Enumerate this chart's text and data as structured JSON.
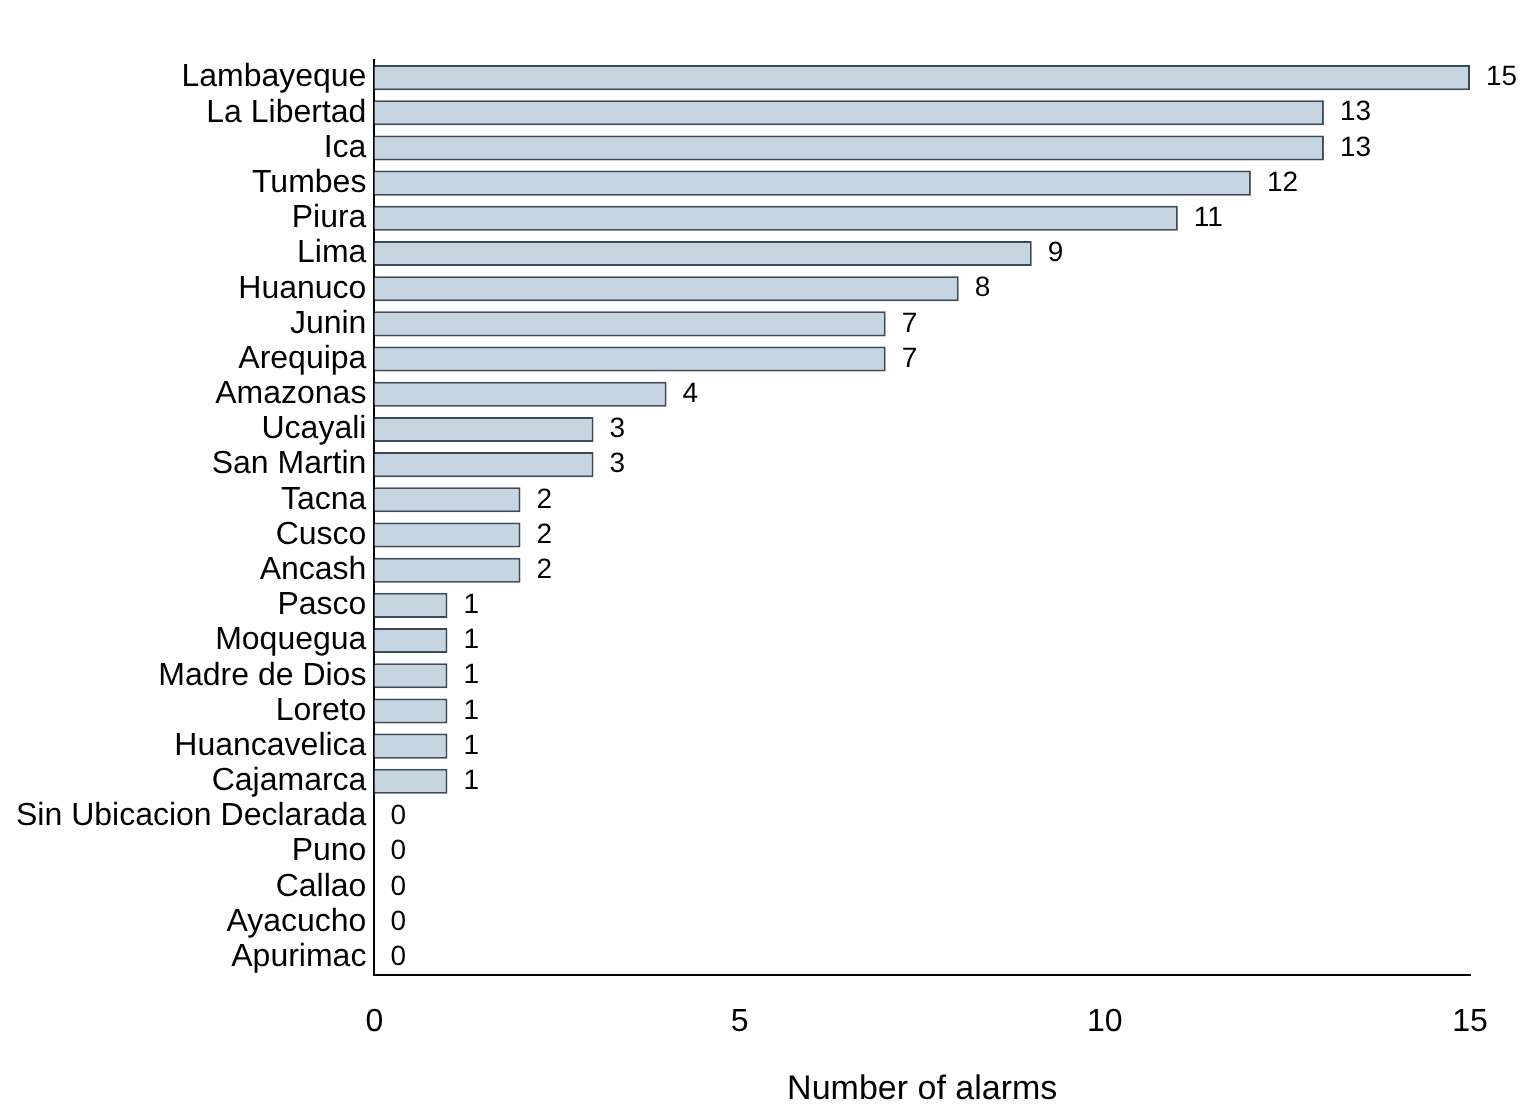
{
  "chart_data": {
    "type": "bar",
    "orientation": "horizontal",
    "xlabel": "Number of alarms",
    "categories": [
      "Lambayeque",
      "La Libertad",
      "Ica",
      "Tumbes",
      "Piura",
      "Lima",
      "Huanuco",
      "Junin",
      "Arequipa",
      "Amazonas",
      "Ucayali",
      "San Martin",
      "Tacna",
      "Cusco",
      "Ancash",
      "Pasco",
      "Moquegua",
      "Madre de Dios",
      "Loreto",
      "Huancavelica",
      "Cajamarca",
      "Sin Ubicacion Declarada",
      "Puno",
      "Callao",
      "Ayacucho",
      "Apurimac"
    ],
    "values": [
      15,
      13,
      13,
      12,
      11,
      9,
      8,
      7,
      7,
      4,
      3,
      3,
      2,
      2,
      2,
      1,
      1,
      1,
      1,
      1,
      1,
      0,
      0,
      0,
      0,
      0
    ],
    "color": "#c6d5e2",
    "xlim": [
      0,
      15
    ],
    "xticks": [
      0,
      5,
      10,
      15
    ],
    "grid": false,
    "data_labels": true
  }
}
